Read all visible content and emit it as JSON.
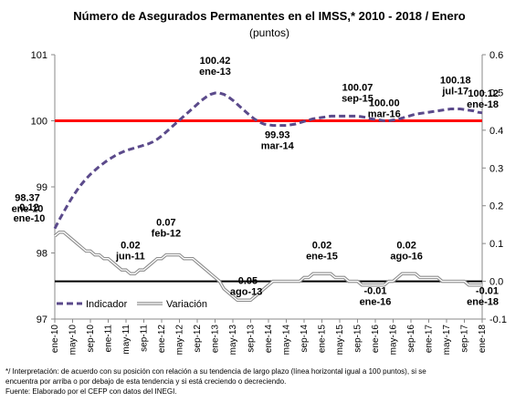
{
  "chart_data": {
    "type": "line",
    "title": "Número de Asegurados Permanentes en el IMSS,* 2010 - 2018 / Enero",
    "subtitle": "(puntos)",
    "categories": [
      "ene-10",
      null,
      null,
      null,
      "may-10",
      null,
      null,
      null,
      "sep-10",
      null,
      null,
      null,
      "ene-11",
      null,
      null,
      null,
      "may-11",
      null,
      null,
      null,
      "sep-11",
      null,
      null,
      null,
      "ene-12",
      null,
      null,
      null,
      "may-12",
      null,
      null,
      null,
      "sep-12",
      null,
      null,
      null,
      "ene-13",
      null,
      null,
      null,
      "may-13",
      null,
      null,
      null,
      "sep-13",
      null,
      null,
      null,
      "ene-14",
      null,
      null,
      null,
      "may-14",
      null,
      null,
      null,
      "sep-14",
      null,
      null,
      null,
      "ene-15",
      null,
      null,
      null,
      "may-15",
      null,
      null,
      null,
      "sep-15",
      null,
      null,
      null,
      "ene-16",
      null,
      null,
      null,
      "may-16",
      null,
      null,
      null,
      "sep-16",
      null,
      null,
      null,
      "ene-17",
      null,
      null,
      null,
      "may-17",
      null,
      null,
      null,
      "sep-17",
      null,
      null,
      null,
      "ene-18"
    ],
    "series": [
      {
        "name": "Indicador",
        "color": "#5b4a8b",
        "dash": true,
        "values": [
          98.37,
          98.5,
          98.62,
          98.74,
          98.85,
          98.95,
          99.04,
          99.12,
          99.19,
          99.25,
          99.31,
          99.36,
          99.41,
          99.45,
          99.49,
          99.52,
          99.55,
          99.57,
          99.59,
          99.61,
          99.63,
          99.65,
          99.68,
          99.72,
          99.77,
          99.83,
          99.89,
          99.95,
          100.01,
          100.07,
          100.13,
          100.19,
          100.25,
          100.31,
          100.36,
          100.4,
          100.42,
          100.42,
          100.4,
          100.36,
          100.31,
          100.25,
          100.19,
          100.13,
          100.07,
          100.02,
          99.98,
          99.95,
          99.94,
          99.93,
          99.93,
          99.93,
          99.93,
          99.94,
          99.95,
          99.97,
          99.99,
          100.01,
          100.03,
          100.04,
          100.05,
          100.06,
          100.07,
          100.07,
          100.07,
          100.07,
          100.07,
          100.07,
          100.07,
          100.06,
          100.05,
          100.03,
          100.02,
          100.01,
          100.0,
          100.0,
          100.01,
          100.02,
          100.04,
          100.06,
          100.08,
          100.1,
          100.11,
          100.12,
          100.13,
          100.14,
          100.15,
          100.16,
          100.17,
          100.18,
          100.18,
          100.18,
          100.17,
          100.16,
          100.15,
          100.13,
          100.12
        ],
        "value_labels": [
          "98.37",
          null,
          null,
          null,
          null,
          null,
          null,
          null,
          null,
          null,
          null,
          null,
          null,
          null,
          null,
          null,
          null,
          null,
          null,
          null,
          null,
          null,
          null,
          null,
          null,
          null,
          null,
          null,
          null,
          null,
          null,
          null,
          null,
          null,
          null,
          null,
          "100.42",
          null,
          null,
          null,
          null,
          null,
          null,
          null,
          null,
          null,
          null,
          null,
          null,
          null,
          "99.93",
          null,
          null,
          null,
          null,
          null,
          null,
          null,
          null,
          null,
          null,
          null,
          null,
          null,
          null,
          null,
          null,
          null,
          "100.07",
          null,
          null,
          null,
          null,
          null,
          "100.00",
          null,
          null,
          null,
          null,
          null,
          null,
          null,
          null,
          null,
          null,
          null,
          null,
          null,
          null,
          null,
          "100.18",
          null,
          null,
          null,
          null,
          null,
          "100.12"
        ],
        "label_dates": [
          "ene-10",
          null,
          null,
          null,
          null,
          null,
          null,
          null,
          null,
          null,
          null,
          null,
          null,
          null,
          null,
          null,
          null,
          null,
          null,
          null,
          null,
          null,
          null,
          null,
          null,
          null,
          null,
          null,
          null,
          null,
          null,
          null,
          null,
          null,
          null,
          null,
          "ene-13",
          null,
          null,
          null,
          null,
          null,
          null,
          null,
          null,
          null,
          null,
          null,
          null,
          null,
          "mar-14",
          null,
          null,
          null,
          null,
          null,
          null,
          null,
          null,
          null,
          null,
          null,
          null,
          null,
          null,
          null,
          null,
          null,
          "sep-15",
          null,
          null,
          null,
          null,
          null,
          "mar-16",
          null,
          null,
          null,
          null,
          null,
          null,
          null,
          null,
          null,
          null,
          null,
          null,
          null,
          null,
          null,
          "jul-17",
          null,
          null,
          null,
          null,
          null,
          "ene-18"
        ]
      },
      {
        "name": "Variación",
        "color": "#8c8c8c",
        "axis": "y2",
        "values": [
          0.12,
          0.13,
          0.13,
          0.12,
          0.11,
          0.1,
          0.09,
          0.08,
          0.08,
          0.07,
          0.07,
          0.06,
          0.06,
          0.05,
          0.04,
          0.03,
          0.03,
          0.02,
          0.02,
          0.03,
          0.03,
          0.04,
          0.05,
          0.06,
          0.06,
          0.07,
          0.07,
          0.07,
          0.07,
          0.06,
          0.06,
          0.06,
          0.05,
          0.04,
          0.03,
          0.02,
          0.01,
          0.0,
          -0.02,
          -0.03,
          -0.04,
          -0.05,
          -0.05,
          -0.05,
          -0.05,
          -0.04,
          -0.03,
          -0.02,
          -0.01,
          0.0,
          0.0,
          0.0,
          0.0,
          0.0,
          0.0,
          0.0,
          0.01,
          0.01,
          0.02,
          0.02,
          0.02,
          0.02,
          0.02,
          0.01,
          0.01,
          0.01,
          0.0,
          0.0,
          0.0,
          -0.01,
          -0.01,
          -0.01,
          -0.01,
          -0.01,
          -0.01,
          0.0,
          0.0,
          0.01,
          0.02,
          0.02,
          0.02,
          0.02,
          0.01,
          0.01,
          0.01,
          0.01,
          0.01,
          0.0,
          0.0,
          0.0,
          0.0,
          0.0,
          0.0,
          -0.01,
          -0.01,
          -0.01,
          -0.01
        ],
        "value_labels": [
          "0.12",
          null,
          null,
          null,
          null,
          null,
          null,
          null,
          null,
          null,
          null,
          null,
          null,
          null,
          null,
          null,
          null,
          "0.02",
          null,
          null,
          null,
          null,
          null,
          null,
          null,
          "0.07",
          null,
          null,
          null,
          null,
          null,
          null,
          null,
          null,
          null,
          null,
          null,
          null,
          null,
          null,
          null,
          null,
          null,
          "-0.05",
          null,
          null,
          null,
          null,
          null,
          null,
          null,
          null,
          null,
          null,
          null,
          null,
          null,
          null,
          null,
          null,
          "0.02",
          null,
          null,
          null,
          null,
          null,
          null,
          null,
          null,
          null,
          null,
          null,
          "-0.01",
          null,
          null,
          null,
          null,
          null,
          null,
          "0.02",
          null,
          null,
          null,
          null,
          null,
          null,
          null,
          null,
          null,
          null,
          null,
          null,
          null,
          null,
          null,
          null,
          "-0.01"
        ],
        "label_dates": [
          "ene-10",
          null,
          null,
          null,
          null,
          null,
          null,
          null,
          null,
          null,
          null,
          null,
          null,
          null,
          null,
          null,
          null,
          "jun-11",
          null,
          null,
          null,
          null,
          null,
          null,
          null,
          "feb-12",
          null,
          null,
          null,
          null,
          null,
          null,
          null,
          null,
          null,
          null,
          null,
          null,
          null,
          null,
          null,
          null,
          null,
          "ago-13",
          null,
          null,
          null,
          null,
          null,
          null,
          null,
          null,
          null,
          null,
          null,
          null,
          null,
          null,
          null,
          null,
          "ene-15",
          null,
          null,
          null,
          null,
          null,
          null,
          null,
          null,
          null,
          null,
          null,
          "ene-16",
          null,
          null,
          null,
          null,
          null,
          null,
          "ago-16",
          null,
          null,
          null,
          null,
          null,
          null,
          null,
          null,
          null,
          null,
          null,
          null,
          null,
          null,
          null,
          null,
          "ene-18"
        ]
      }
    ],
    "ylim": [
      97,
      101
    ],
    "yticks": [
      97,
      98,
      99,
      100,
      101
    ],
    "y2lim": [
      -0.1,
      0.6
    ],
    "y2ticks": [
      -0.1,
      {
        "value": 0,
        "label": "0.0"
      },
      0.1,
      0.2,
      0.3,
      0.4,
      0.5,
      0.6
    ],
    "ref_lines": [
      {
        "value": 100,
        "color": "#ff0000"
      },
      {
        "value": 0,
        "axis": "y2",
        "color": "#000000"
      }
    ],
    "legend": "lower left",
    "notes": [
      "*/ Interpretación: de acuerdo con su posición con relación a su tendencia de largo plazo (línea horizontal igual a 100 puntos), si se",
      "encuentra por arriba o por debajo de esta tendencia y si está creciendo o decreciendo.",
      "Fuente: Elaborado por el CEFP con datos del INEGI."
    ]
  }
}
